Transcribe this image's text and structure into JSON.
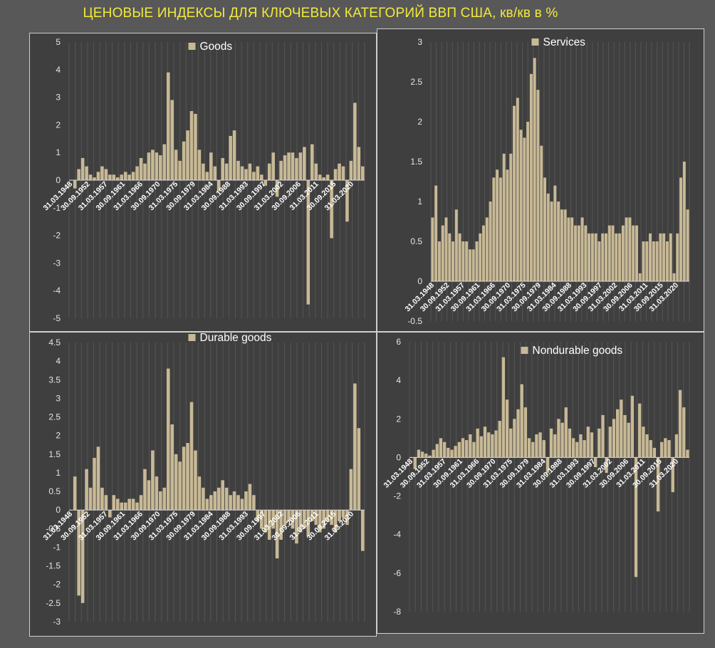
{
  "title": "ЦЕНОВЫЕ ИНДЕКСЫ ДЛЯ КЛЮЧЕВЫХ КАТЕГОРИЙ ВВП США, кв/кв в %",
  "colors": {
    "background": "#585858",
    "panel": "#3f3f3f",
    "bar": "#c8b996",
    "title": "#f2ea3a"
  },
  "chart_data": [
    {
      "type": "bar",
      "legend": "Goods",
      "legend_position": "top-center",
      "grid": true,
      "ylim": [
        -5,
        5
      ],
      "yticks": [
        "5",
        "4",
        "3",
        "2",
        "1",
        "0",
        "-1",
        "-2",
        "-3",
        "-4",
        "-5"
      ],
      "xticks": [
        "31.03.1948",
        "30.09.1952",
        "31.03.1957",
        "30.09.1961",
        "31.03.1966",
        "30.09.1970",
        "31.03.1975",
        "30.09.1979",
        "31.03.1984",
        "30.09.1988",
        "31.03.1993",
        "30.09.1997",
        "31.03.2002",
        "30.09.2006",
        "31.03.2011",
        "30.09.2015",
        "31.03.2020"
      ],
      "categories": [
        "1948",
        "1949",
        "1950",
        "1951",
        "1952",
        "1953",
        "1954",
        "1955",
        "1956",
        "1957",
        "1958",
        "1959",
        "1960",
        "1961",
        "1962",
        "1963",
        "1964",
        "1965",
        "1966",
        "1967",
        "1968",
        "1969",
        "1970",
        "1971",
        "1972",
        "1973",
        "1974",
        "1975",
        "1976",
        "1977",
        "1978",
        "1979",
        "1980",
        "1981",
        "1982",
        "1983",
        "1984",
        "1985",
        "1986",
        "1987",
        "1988",
        "1989",
        "1990",
        "1991",
        "1992",
        "1993",
        "1994",
        "1995",
        "1996",
        "1997",
        "1998",
        "1999",
        "2000",
        "2001",
        "2002",
        "2003",
        "2004",
        "2005",
        "2006",
        "2007",
        "2008",
        "2009",
        "2010",
        "2011",
        "2012",
        "2013",
        "2014",
        "2015",
        "2016",
        "2017",
        "2018",
        "2019",
        "2020",
        "2021",
        "2022",
        "2023"
      ],
      "values": [
        0.0,
        -0.3,
        0.4,
        0.8,
        0.5,
        0.2,
        0.1,
        0.3,
        0.5,
        0.4,
        0.2,
        0.2,
        0.1,
        0.2,
        0.3,
        0.2,
        0.3,
        0.5,
        0.8,
        0.6,
        1.0,
        1.1,
        1.0,
        0.9,
        1.3,
        3.9,
        2.9,
        1.1,
        0.7,
        1.4,
        1.8,
        2.5,
        2.4,
        1.1,
        0.6,
        0.3,
        1.0,
        0.5,
        -0.4,
        0.8,
        0.6,
        1.6,
        1.8,
        0.7,
        0.5,
        0.4,
        0.6,
        0.3,
        0.5,
        0.2,
        -0.2,
        0.6,
        1.0,
        -0.6,
        0.7,
        0.9,
        1.0,
        1.0,
        0.8,
        1.0,
        1.2,
        -4.5,
        1.3,
        0.6,
        0.2,
        0.1,
        0.2,
        -2.1,
        0.4,
        0.6,
        0.5,
        -1.5,
        0.7,
        2.8,
        1.2,
        0.5
      ]
    },
    {
      "type": "bar",
      "legend": "Services",
      "legend_position": "top-center",
      "grid": true,
      "ylim": [
        -0.5,
        3
      ],
      "yticks": [
        "3",
        "2.5",
        "2",
        "1.5",
        "1",
        "0.5",
        "0",
        "-0.5"
      ],
      "xticks": [
        "31.03.1948",
        "30.09.1952",
        "31.03.1957",
        "30.09.1961",
        "31.03.1966",
        "30.09.1970",
        "31.03.1975",
        "30.09.1979",
        "31.03.1984",
        "30.09.1988",
        "31.03.1993",
        "30.09.1997",
        "31.03.2002",
        "30.09.2006",
        "31.03.2011",
        "30.09.2015",
        "31.03.2020"
      ],
      "categories": [
        "1948",
        "1949",
        "1950",
        "1951",
        "1952",
        "1953",
        "1954",
        "1955",
        "1956",
        "1957",
        "1958",
        "1959",
        "1960",
        "1961",
        "1962",
        "1963",
        "1964",
        "1965",
        "1966",
        "1967",
        "1968",
        "1969",
        "1970",
        "1971",
        "1972",
        "1973",
        "1974",
        "1975",
        "1976",
        "1977",
        "1978",
        "1979",
        "1980",
        "1981",
        "1982",
        "1983",
        "1984",
        "1985",
        "1986",
        "1987",
        "1988",
        "1989",
        "1990",
        "1991",
        "1992",
        "1993",
        "1994",
        "1995",
        "1996",
        "1997",
        "1998",
        "1999",
        "2000",
        "2001",
        "2002",
        "2003",
        "2004",
        "2005",
        "2006",
        "2007",
        "2008",
        "2009",
        "2010",
        "2011",
        "2012",
        "2013",
        "2014",
        "2015",
        "2016",
        "2017",
        "2018",
        "2019",
        "2020",
        "2021",
        "2022",
        "2023"
      ],
      "values": [
        0.8,
        1.2,
        0.5,
        0.7,
        0.8,
        0.6,
        0.5,
        0.9,
        0.6,
        0.5,
        0.5,
        0.4,
        0.4,
        0.5,
        0.6,
        0.7,
        0.8,
        1.0,
        1.3,
        1.4,
        1.3,
        1.6,
        1.4,
        1.6,
        2.2,
        2.3,
        1.9,
        1.8,
        2.0,
        2.6,
        2.8,
        2.4,
        1.7,
        1.3,
        1.1,
        1.0,
        1.2,
        1.0,
        0.9,
        0.9,
        0.8,
        0.8,
        0.7,
        0.7,
        0.8,
        0.7,
        0.6,
        0.6,
        0.6,
        0.5,
        0.6,
        0.6,
        0.7,
        0.7,
        0.6,
        0.6,
        0.7,
        0.8,
        0.8,
        0.7,
        0.7,
        0.1,
        0.5,
        0.5,
        0.6,
        0.5,
        0.5,
        0.6,
        0.6,
        0.5,
        0.6,
        0.1,
        0.6,
        1.3,
        1.5,
        0.9
      ]
    },
    {
      "type": "bar",
      "legend": "Durable goods",
      "legend_position": "top-center",
      "grid": true,
      "ylim": [
        -3,
        4.5
      ],
      "yticks": [
        "4.5",
        "4",
        "3.5",
        "3",
        "2.5",
        "2",
        "1.5",
        "1",
        "0.5",
        "0",
        "-0.5",
        "-1",
        "-1.5",
        "-2",
        "-2.5",
        "-3"
      ],
      "xticks": [
        "31.03.1948",
        "30.09.1952",
        "31.03.1957",
        "30.09.1961",
        "31.03.1966",
        "30.09.1970",
        "31.03.1975",
        "30.09.1979",
        "31.03.1984",
        "30.09.1988",
        "31.03.1993",
        "30.09.1997",
        "31.03.2002",
        "30.09.2006",
        "31.03.2011",
        "30.09.2015",
        "31.03.2020"
      ],
      "categories": [
        "1948",
        "1949",
        "1950",
        "1951",
        "1952",
        "1953",
        "1954",
        "1955",
        "1956",
        "1957",
        "1958",
        "1959",
        "1960",
        "1961",
        "1962",
        "1963",
        "1964",
        "1965",
        "1966",
        "1967",
        "1968",
        "1969",
        "1970",
        "1971",
        "1972",
        "1973",
        "1974",
        "1975",
        "1976",
        "1977",
        "1978",
        "1979",
        "1980",
        "1981",
        "1982",
        "1983",
        "1984",
        "1985",
        "1986",
        "1987",
        "1988",
        "1989",
        "1990",
        "1991",
        "1992",
        "1993",
        "1994",
        "1995",
        "1996",
        "1997",
        "1998",
        "1999",
        "2000",
        "2001",
        "2002",
        "2003",
        "2004",
        "2005",
        "2006",
        "2007",
        "2008",
        "2009",
        "2010",
        "2011",
        "2012",
        "2013",
        "2014",
        "2015",
        "2016",
        "2017",
        "2018",
        "2019",
        "2020",
        "2021",
        "2022",
        "2023"
      ],
      "values": [
        0.0,
        0.9,
        -2.3,
        -2.5,
        1.1,
        0.6,
        1.4,
        1.7,
        0.6,
        0.4,
        -0.2,
        0.4,
        0.3,
        0.2,
        0.2,
        0.3,
        0.3,
        0.2,
        0.4,
        1.1,
        0.8,
        1.6,
        0.9,
        0.5,
        0.6,
        3.8,
        2.3,
        1.5,
        1.3,
        1.7,
        1.8,
        2.9,
        1.6,
        0.9,
        0.6,
        0.3,
        0.4,
        0.5,
        0.6,
        0.8,
        0.6,
        0.4,
        0.5,
        0.4,
        0.3,
        0.5,
        0.7,
        0.4,
        -0.3,
        -0.5,
        -0.6,
        -0.8,
        -0.5,
        -1.3,
        -0.8,
        -0.4,
        -0.3,
        -0.5,
        -0.9,
        -0.6,
        -0.5,
        -0.7,
        -0.3,
        -0.4,
        -0.6,
        -0.5,
        -0.3,
        -0.4,
        -0.6,
        -0.3,
        -0.2,
        -0.4,
        1.1,
        3.4,
        2.2,
        -1.1
      ]
    },
    {
      "type": "bar",
      "legend": "Nondurable goods",
      "legend_position": "top-center",
      "grid": true,
      "ylim": [
        -8,
        6
      ],
      "yticks": [
        "6",
        "4",
        "2",
        "0",
        "-2",
        "-4",
        "-6",
        "-8"
      ],
      "xticks": [
        "31.03.1948",
        "30.09.1952",
        "31.03.1957",
        "30.09.1961",
        "31.03.1966",
        "30.09.1970",
        "31.03.1975",
        "30.09.1979",
        "31.03.1984",
        "30.09.1988",
        "31.03.1993",
        "30.09.1997",
        "31.03.2002",
        "30.09.2006",
        "31.03.2011",
        "30.09.2015",
        "31.03.2020"
      ],
      "categories": [
        "1948",
        "1949",
        "1950",
        "1951",
        "1952",
        "1953",
        "1954",
        "1955",
        "1956",
        "1957",
        "1958",
        "1959",
        "1960",
        "1961",
        "1962",
        "1963",
        "1964",
        "1965",
        "1966",
        "1967",
        "1968",
        "1969",
        "1970",
        "1971",
        "1972",
        "1973",
        "1974",
        "1975",
        "1976",
        "1977",
        "1978",
        "1979",
        "1980",
        "1981",
        "1982",
        "1983",
        "1984",
        "1985",
        "1986",
        "1987",
        "1988",
        "1989",
        "1990",
        "1991",
        "1992",
        "1993",
        "1994",
        "1995",
        "1996",
        "1997",
        "1998",
        "1999",
        "2000",
        "2001",
        "2002",
        "2003",
        "2004",
        "2005",
        "2006",
        "2007",
        "2008",
        "2009",
        "2010",
        "2011",
        "2012",
        "2013",
        "2014",
        "2015",
        "2016",
        "2017",
        "2018",
        "2019",
        "2020",
        "2021",
        "2022",
        "2023"
      ],
      "values": [
        0.0,
        -0.6,
        0.4,
        0.3,
        0.2,
        0.1,
        0.4,
        0.7,
        1.0,
        0.8,
        0.5,
        0.4,
        0.6,
        0.8,
        1.0,
        0.9,
        1.2,
        0.8,
        1.5,
        1.1,
        1.6,
        1.3,
        1.2,
        1.4,
        1.9,
        5.2,
        3.0,
        1.5,
        2.0,
        2.5,
        3.8,
        2.6,
        1.0,
        0.8,
        1.2,
        1.3,
        0.9,
        -0.8,
        1.5,
        1.2,
        2.0,
        1.8,
        2.6,
        1.5,
        1.0,
        0.8,
        1.2,
        0.9,
        1.6,
        1.3,
        -0.5,
        1.5,
        2.2,
        -0.8,
        1.6,
        2.0,
        2.5,
        3.0,
        2.2,
        1.8,
        3.2,
        -6.2,
        2.8,
        1.6,
        1.2,
        0.9,
        0.5,
        -2.8,
        0.8,
        1.0,
        0.9,
        -1.8,
        1.2,
        3.5,
        2.6,
        0.4
      ]
    }
  ]
}
